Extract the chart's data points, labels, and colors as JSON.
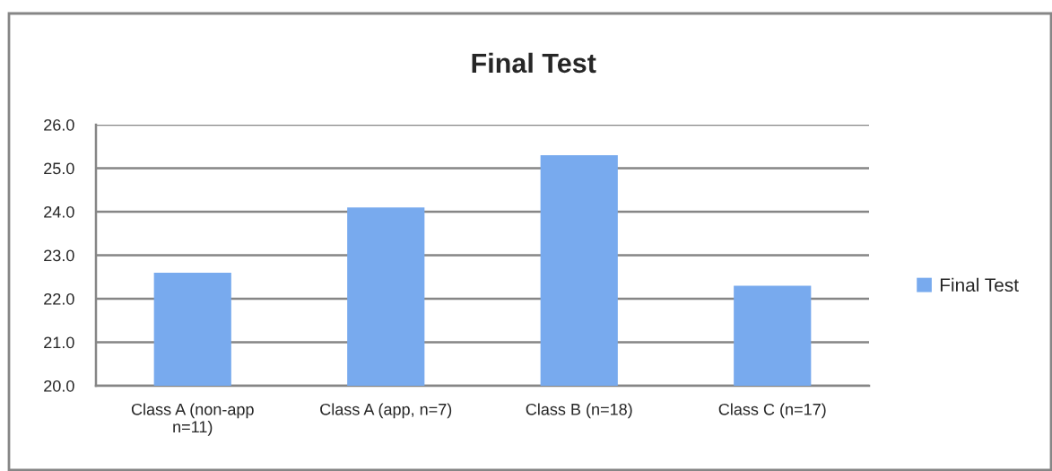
{
  "chart_data": {
    "type": "bar",
    "title": "Final Test",
    "categories": [
      "Class A (non-app\nn=11)",
      "Class A (app, n=7)",
      "Class B (n=18)",
      "Class C (n=17)"
    ],
    "series": [
      {
        "name": "Final Test",
        "color": "#78aaee",
        "values": [
          22.6,
          24.1,
          25.3,
          22.3
        ]
      }
    ],
    "ylim": [
      20,
      26
    ],
    "yticks": [
      {
        "value": 20,
        "label": "20.0"
      },
      {
        "value": 21,
        "label": "21.0"
      },
      {
        "value": 22,
        "label": "22.0"
      },
      {
        "value": 23,
        "label": "23.0"
      },
      {
        "value": 24,
        "label": "24.0"
      },
      {
        "value": 25,
        "label": "25.0"
      },
      {
        "value": 26,
        "label": "26.0"
      }
    ],
    "grid": "y",
    "legend": "right"
  }
}
